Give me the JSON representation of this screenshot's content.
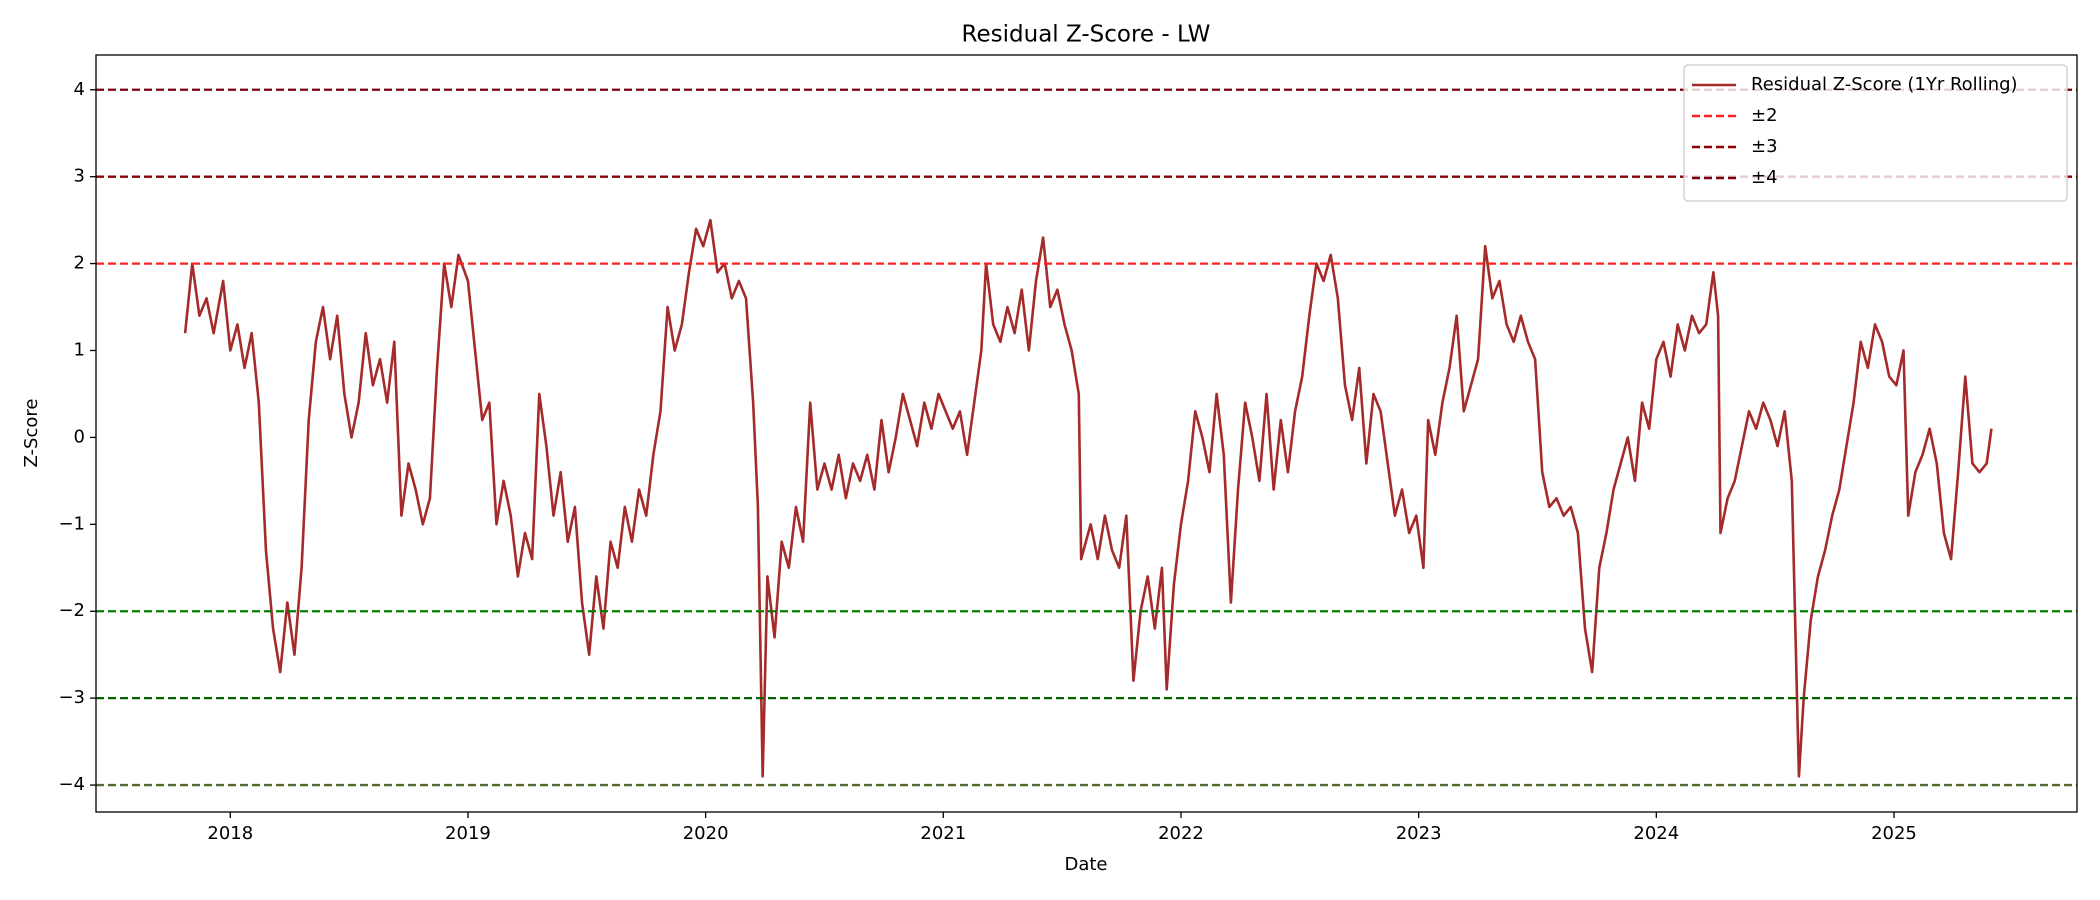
{
  "chart_data": {
    "type": "line",
    "title": "Residual Z-Score - LW",
    "xlabel": "Date",
    "ylabel": "Z-Score",
    "xlim": [
      2017.435,
      2025.77
    ],
    "ylim": [
      -4.31,
      4.4
    ],
    "xticks": [
      2018,
      2019,
      2020,
      2021,
      2022,
      2023,
      2024,
      2025
    ],
    "yticks": [
      {
        "value": -4,
        "label": "−4"
      },
      {
        "value": -3,
        "label": "−3"
      },
      {
        "value": -2,
        "label": "−2"
      },
      {
        "value": -1,
        "label": "−1"
      },
      0,
      1,
      2,
      3,
      4
    ],
    "grid": false,
    "legend": "upper right",
    "series": [
      {
        "name": "Residual Z-Score (1Yr Rolling)",
        "color": "#a52a2a",
        "x": [
          2017.81,
          2017.84,
          2017.87,
          2017.9,
          2017.93,
          2017.97,
          2018.0,
          2018.03,
          2018.06,
          2018.09,
          2018.12,
          2018.15,
          2018.18,
          2018.21,
          2018.24,
          2018.27,
          2018.3,
          2018.33,
          2018.36,
          2018.39,
          2018.42,
          2018.45,
          2018.48,
          2018.51,
          2018.54,
          2018.57,
          2018.6,
          2018.63,
          2018.66,
          2018.69,
          2018.72,
          2018.75,
          2018.78,
          2018.81,
          2018.84,
          2018.87,
          2018.9,
          2018.93,
          2018.96,
          2019.0,
          2019.03,
          2019.06,
          2019.09,
          2019.12,
          2019.15,
          2019.18,
          2019.21,
          2019.24,
          2019.27,
          2019.3,
          2019.33,
          2019.36,
          2019.39,
          2019.42,
          2019.45,
          2019.48,
          2019.51,
          2019.54,
          2019.57,
          2019.6,
          2019.63,
          2019.66,
          2019.69,
          2019.72,
          2019.75,
          2019.78,
          2019.81,
          2019.84,
          2019.87,
          2019.9,
          2019.93,
          2019.96,
          2019.99,
          2020.02,
          2020.05,
          2020.08,
          2020.11,
          2020.14,
          2020.17,
          2020.2,
          2020.22,
          2020.24,
          2020.26,
          2020.29,
          2020.32,
          2020.35,
          2020.38,
          2020.41,
          2020.44,
          2020.47,
          2020.5,
          2020.53,
          2020.56,
          2020.59,
          2020.62,
          2020.65,
          2020.68,
          2020.71,
          2020.74,
          2020.77,
          2020.8,
          2020.83,
          2020.86,
          2020.89,
          2020.92,
          2020.95,
          2020.98,
          2021.01,
          2021.04,
          2021.07,
          2021.1,
          2021.13,
          2021.16,
          2021.18,
          2021.21,
          2021.24,
          2021.27,
          2021.3,
          2021.33,
          2021.36,
          2021.39,
          2021.42,
          2021.45,
          2021.48,
          2021.51,
          2021.54,
          2021.57,
          2021.58,
          2021.62,
          2021.65,
          2021.68,
          2021.71,
          2021.74,
          2021.77,
          2021.8,
          2021.83,
          2021.86,
          2021.89,
          2021.92,
          2021.94,
          2021.97,
          2022.0,
          2022.03,
          2022.06,
          2022.09,
          2022.12,
          2022.15,
          2022.18,
          2022.21,
          2022.24,
          2022.27,
          2022.3,
          2022.33,
          2022.36,
          2022.39,
          2022.42,
          2022.45,
          2022.48,
          2022.51,
          2022.54,
          2022.57,
          2022.6,
          2022.63,
          2022.66,
          2022.69,
          2022.72,
          2022.75,
          2022.78,
          2022.81,
          2022.84,
          2022.87,
          2022.9,
          2022.93,
          2022.96,
          2022.99,
          2023.02,
          2023.04,
          2023.07,
          2023.1,
          2023.13,
          2023.16,
          2023.19,
          2023.22,
          2023.25,
          2023.28,
          2023.31,
          2023.34,
          2023.37,
          2023.4,
          2023.43,
          2023.46,
          2023.49,
          2023.52,
          2023.55,
          2023.58,
          2023.61,
          2023.64,
          2023.67,
          2023.7,
          2023.73,
          2023.76,
          2023.79,
          2023.82,
          2023.85,
          2023.88,
          2023.91,
          2023.94,
          2023.97,
          2024.0,
          2024.03,
          2024.06,
          2024.09,
          2024.12,
          2024.15,
          2024.18,
          2024.21,
          2024.24,
          2024.26,
          2024.27,
          2024.3,
          2024.33,
          2024.36,
          2024.39,
          2024.42,
          2024.45,
          2024.48,
          2024.51,
          2024.54,
          2024.57,
          2024.6,
          2024.62,
          2024.65,
          2024.68,
          2024.71,
          2024.74,
          2024.77,
          2024.8,
          2024.83,
          2024.86,
          2024.89,
          2024.92,
          2024.95,
          2024.98,
          2025.01,
          2025.04,
          2025.06,
          2025.09,
          2025.12,
          2025.15,
          2025.18,
          2025.21,
          2025.24,
          2025.27,
          2025.3,
          2025.33,
          2025.36,
          2025.39,
          2025.41
        ],
        "values": [
          1.2,
          2.0,
          1.4,
          1.6,
          1.2,
          1.8,
          1.0,
          1.3,
          0.8,
          1.2,
          0.4,
          -1.3,
          -2.2,
          -2.7,
          -1.9,
          -2.5,
          -1.5,
          0.2,
          1.1,
          1.5,
          0.9,
          1.4,
          0.5,
          0.0,
          0.4,
          1.2,
          0.6,
          0.9,
          0.4,
          1.1,
          -0.9,
          -0.3,
          -0.6,
          -1.0,
          -0.7,
          0.8,
          2.0,
          1.5,
          2.1,
          1.8,
          1.0,
          0.2,
          0.4,
          -1.0,
          -0.5,
          -0.9,
          -1.6,
          -1.1,
          -1.4,
          0.5,
          -0.1,
          -0.9,
          -0.4,
          -1.2,
          -0.8,
          -1.9,
          -2.5,
          -1.6,
          -2.2,
          -1.2,
          -1.5,
          -0.8,
          -1.2,
          -0.6,
          -0.9,
          -0.2,
          0.3,
          1.5,
          1.0,
          1.3,
          1.9,
          2.4,
          2.2,
          2.5,
          1.9,
          2.0,
          1.6,
          1.8,
          1.6,
          0.4,
          -0.8,
          -3.9,
          -1.6,
          -2.3,
          -1.2,
          -1.5,
          -0.8,
          -1.2,
          0.4,
          -0.6,
          -0.3,
          -0.6,
          -0.2,
          -0.7,
          -0.3,
          -0.5,
          -0.2,
          -0.6,
          0.2,
          -0.4,
          0.0,
          0.5,
          0.2,
          -0.1,
          0.4,
          0.1,
          0.5,
          0.3,
          0.1,
          0.3,
          -0.2,
          0.4,
          1.0,
          2.0,
          1.3,
          1.1,
          1.5,
          1.2,
          1.7,
          1.0,
          1.8,
          2.3,
          1.5,
          1.7,
          1.3,
          1.0,
          0.5,
          -1.4,
          -1.0,
          -1.4,
          -0.9,
          -1.3,
          -1.5,
          -0.9,
          -2.8,
          -2.0,
          -1.6,
          -2.2,
          -1.5,
          -2.9,
          -1.7,
          -1.0,
          -0.5,
          0.3,
          0.0,
          -0.4,
          0.5,
          -0.2,
          -1.9,
          -0.6,
          0.4,
          0.0,
          -0.5,
          0.5,
          -0.6,
          0.2,
          -0.4,
          0.3,
          0.7,
          1.4,
          2.0,
          1.8,
          2.1,
          1.6,
          0.6,
          0.2,
          0.8,
          -0.3,
          0.5,
          0.3,
          -0.3,
          -0.9,
          -0.6,
          -1.1,
          -0.9,
          -1.5,
          0.2,
          -0.2,
          0.4,
          0.8,
          1.4,
          0.3,
          0.6,
          0.9,
          2.2,
          1.6,
          1.8,
          1.3,
          1.1,
          1.4,
          1.1,
          0.9,
          -0.4,
          -0.8,
          -0.7,
          -0.9,
          -0.8,
          -1.1,
          -2.2,
          -2.7,
          -1.5,
          -1.1,
          -0.6,
          -0.3,
          0.0,
          -0.5,
          0.4,
          0.1,
          0.9,
          1.1,
          0.7,
          1.3,
          1.0,
          1.4,
          1.2,
          1.3,
          1.9,
          1.4,
          -1.1,
          -0.7,
          -0.5,
          -0.1,
          0.3,
          0.1,
          0.4,
          0.2,
          -0.1,
          0.3,
          -0.5,
          -3.9,
          -3.0,
          -2.1,
          -1.6,
          -1.3,
          -0.9,
          -0.6,
          -0.1,
          0.4,
          1.1,
          0.8,
          1.3,
          1.1,
          0.7,
          0.6,
          1.0,
          -0.9,
          -0.4,
          -0.2,
          0.1,
          -0.3,
          -1.1,
          -1.4,
          -0.4,
          0.7,
          -0.3,
          -0.4,
          -0.3,
          0.1
        ]
      }
    ],
    "reference_lines": [
      {
        "name": "±2",
        "values": [
          2,
          -2
        ],
        "colors": [
          "#ff2020",
          "#008000"
        ]
      },
      {
        "name": "±3",
        "values": [
          3,
          -3
        ],
        "colors": [
          "#8b0000",
          "#006400"
        ]
      },
      {
        "name": "±4",
        "values": [
          4,
          -4
        ],
        "colors": [
          "#7a0010",
          "#556b2f"
        ]
      }
    ]
  }
}
